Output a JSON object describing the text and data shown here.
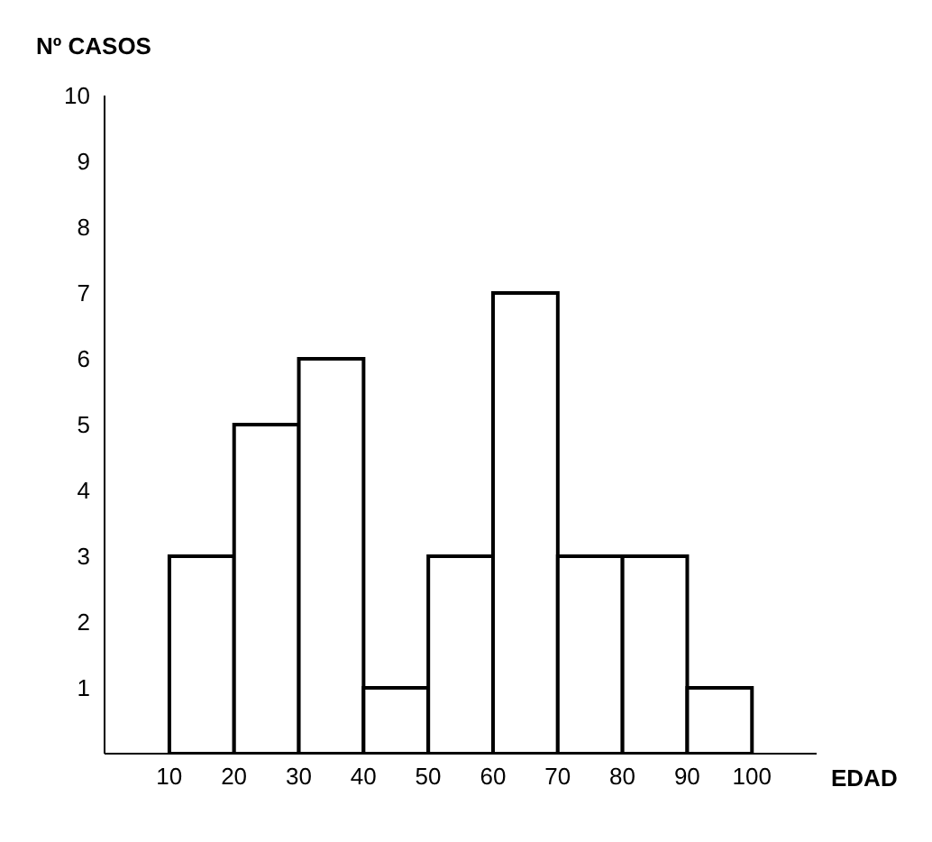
{
  "chart_data": {
    "type": "histogram",
    "xlabel": "EDAD",
    "ylabel": "Nº CASOS",
    "bins": [
      10,
      20,
      30,
      40,
      50,
      60,
      70,
      80,
      90,
      100
    ],
    "values": [
      3,
      5,
      6,
      1,
      3,
      7,
      3,
      3,
      1
    ],
    "color": "#ffffff",
    "xlim": [
      0,
      110
    ],
    "xticks": [
      10,
      20,
      30,
      40,
      50,
      60,
      70,
      80,
      90,
      100
    ],
    "ylim": [
      0,
      10
    ],
    "yticks": [
      1,
      2,
      3,
      4,
      5,
      6,
      7,
      8,
      9,
      10
    ],
    "grid": false,
    "legend": false
  }
}
